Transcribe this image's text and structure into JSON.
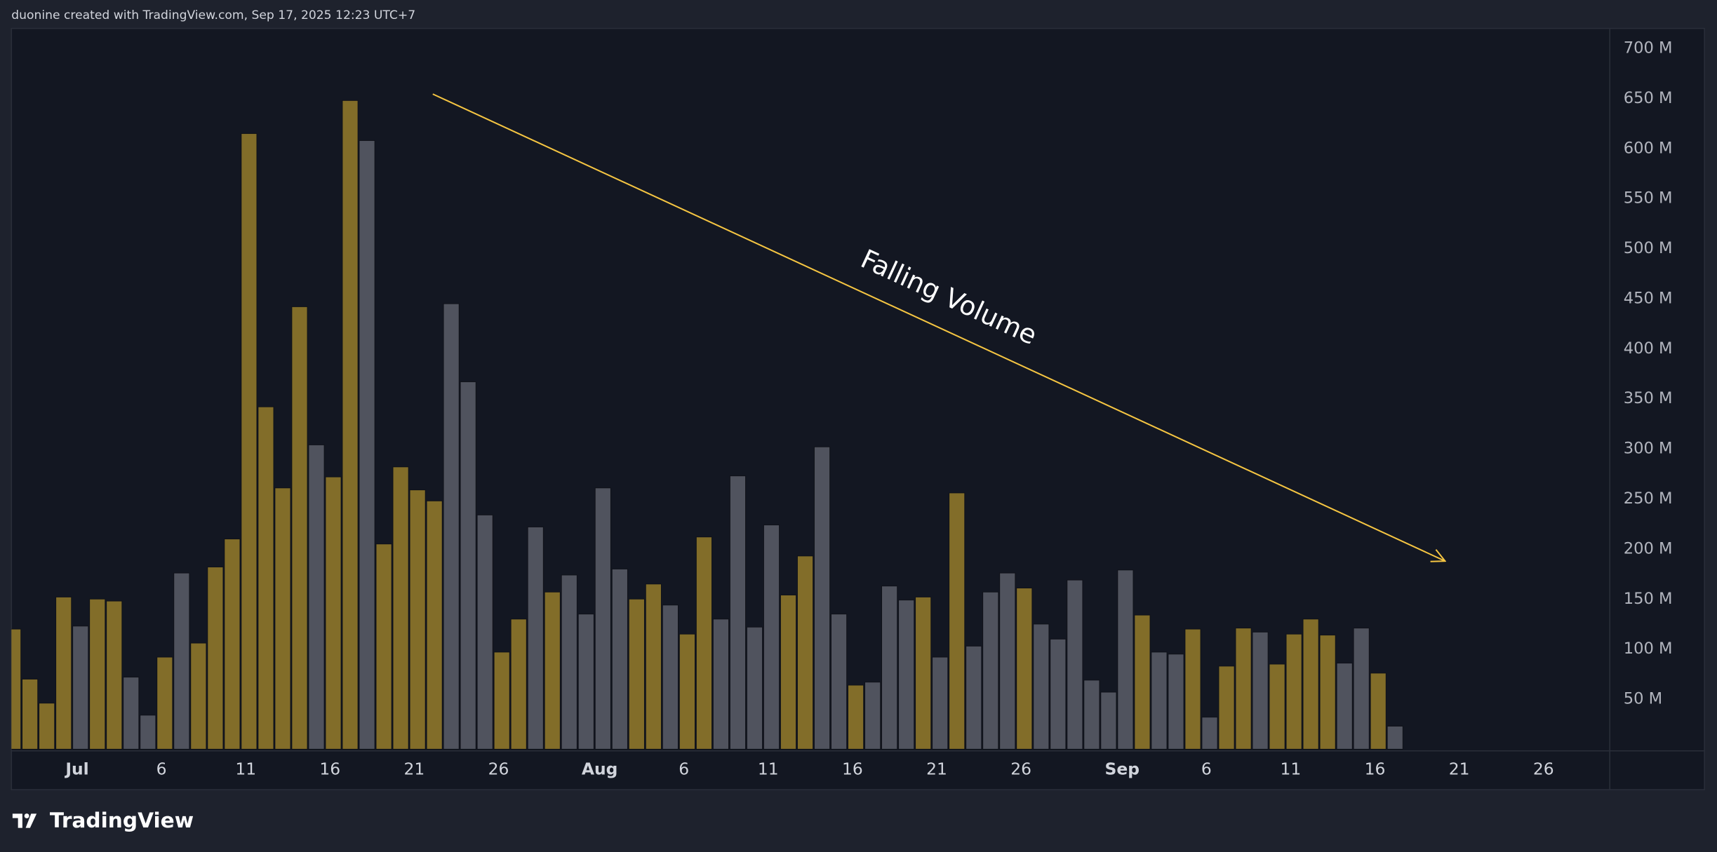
{
  "header": {
    "text": "duonine created with TradingView.com, Sep 17, 2025 12:23 UTC+7"
  },
  "footer": {
    "logo": "TradingView"
  },
  "chart_data": {
    "type": "bar",
    "annotation": "Falling Volume",
    "categories": [
      null,
      null,
      null,
      null,
      "Jul",
      null,
      null,
      null,
      null,
      "6",
      null,
      null,
      null,
      null,
      "11",
      null,
      null,
      null,
      null,
      "16",
      null,
      null,
      null,
      null,
      "21",
      null,
      null,
      null,
      null,
      "26",
      null,
      null,
      null,
      null,
      null,
      "Aug",
      null,
      null,
      null,
      null,
      "6",
      null,
      null,
      null,
      null,
      "11",
      null,
      null,
      null,
      null,
      "16",
      null,
      null,
      null,
      null,
      "21",
      null,
      null,
      null,
      null,
      "26",
      null,
      null,
      null,
      null,
      null,
      "Sep",
      null,
      null,
      null,
      null,
      "6",
      null,
      null,
      null,
      null,
      "11",
      null,
      null,
      null,
      null,
      "16",
      null,
      null,
      null,
      null,
      "21",
      null,
      null,
      null,
      null,
      "26",
      null,
      null,
      null
    ],
    "values": [
      120000000,
      70000000,
      46000000,
      152000000,
      123000000,
      150000000,
      148000000,
      72000000,
      34000000,
      92000000,
      176000000,
      106000000,
      182000000,
      210000000,
      615000000,
      342000000,
      261000000,
      442000000,
      304000000,
      272000000,
      648000000,
      608000000,
      205000000,
      282000000,
      259000000,
      248000000,
      445000000,
      367000000,
      234000000,
      97000000,
      130000000,
      222000000,
      157000000,
      174000000,
      135000000,
      261000000,
      180000000,
      150000000,
      165000000,
      144000000,
      115000000,
      212000000,
      130000000,
      273000000,
      122000000,
      224000000,
      154000000,
      193000000,
      302000000,
      135000000,
      64000000,
      67000000,
      163000000,
      149000000,
      152000000,
      92000000,
      256000000,
      103000000,
      157000000,
      176000000,
      161000000,
      125000000,
      110000000,
      169000000,
      69000000,
      57000000,
      179000000,
      134000000,
      97000000,
      95000000,
      120000000,
      32000000,
      83000000,
      121000000,
      117000000,
      85000000,
      115000000,
      130000000,
      114000000,
      86000000,
      121000000,
      76000000,
      23000000,
      null,
      null,
      null,
      null,
      null,
      null,
      null,
      null,
      null,
      null,
      null,
      null
    ],
    "bar_colors": [
      "#826d29",
      "#826d29",
      "#826d29",
      "#826d29",
      "#50535e",
      "#826d29",
      "#826d29",
      "#50535e",
      "#50535e",
      "#826d29",
      "#50535e",
      "#826d29",
      "#826d29",
      "#826d29",
      "#826d29",
      "#826d29",
      "#826d29",
      "#826d29",
      "#50535e",
      "#826d29",
      "#826d29",
      "#50535e",
      "#826d29",
      "#826d29",
      "#826d29",
      "#826d29",
      "#50535e",
      "#50535e",
      "#50535e",
      "#826d29",
      "#826d29",
      "#50535e",
      "#826d29",
      "#50535e",
      "#50535e",
      "#50535e",
      "#50535e",
      "#826d29",
      "#826d29",
      "#50535e",
      "#826d29",
      "#826d29",
      "#50535e",
      "#50535e",
      "#50535e",
      "#50535e",
      "#826d29",
      "#826d29",
      "#50535e",
      "#50535e",
      "#826d29",
      "#50535e",
      "#50535e",
      "#50535e",
      "#826d29",
      "#50535e",
      "#826d29",
      "#50535e",
      "#50535e",
      "#50535e",
      "#826d29",
      "#50535e",
      "#50535e",
      "#50535e",
      "#50535e",
      "#50535e",
      "#50535e",
      "#826d29",
      "#50535e",
      "#50535e",
      "#826d29",
      "#50535e",
      "#826d29",
      "#826d29",
      "#50535e",
      "#826d29",
      "#826d29",
      "#826d29",
      "#826d29",
      "#50535e",
      "#50535e",
      "#826d29",
      "#50535e",
      null,
      null,
      null,
      null,
      null,
      null,
      null,
      null,
      null,
      null,
      null,
      null
    ],
    "annotation_color": "#f5c542",
    "ylim": [
      0,
      720000000
    ],
    "yticks": [
      {
        "value": 50000000,
        "label": "50 M"
      },
      {
        "value": 100000000,
        "label": "100 M"
      },
      {
        "value": 150000000,
        "label": "150 M"
      },
      {
        "value": 200000000,
        "label": "200 M"
      },
      {
        "value": 250000000,
        "label": "250 M"
      },
      {
        "value": 300000000,
        "label": "300 M"
      },
      {
        "value": 350000000,
        "label": "350 M"
      },
      {
        "value": 400000000,
        "label": "400 M"
      },
      {
        "value": 450000000,
        "label": "450 M"
      },
      {
        "value": 500000000,
        "label": "500 M"
      },
      {
        "value": 550000000,
        "label": "550 M"
      },
      {
        "value": 600000000,
        "label": "600 M"
      },
      {
        "value": 650000000,
        "label": "650 M"
      },
      {
        "value": 700000000,
        "label": "700 M"
      }
    ],
    "grid": false
  }
}
